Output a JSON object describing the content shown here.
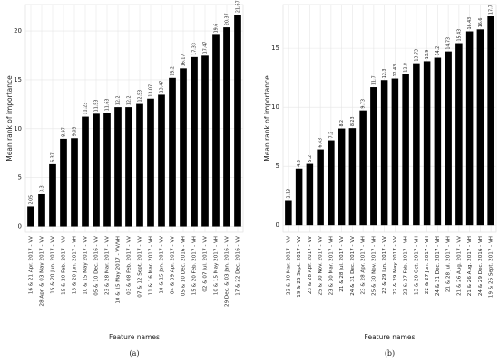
{
  "chart_data": [
    {
      "type": "bar",
      "caption": "(a)",
      "x_label": "Feature names",
      "y_label": "Mean rank of importance",
      "categories": [
        "16 & 21 Apr. 2017 - VV",
        "28 Apr. & 03 May 2017 - VV",
        "15 & 20 Jun. 2017 - VV",
        "15 & 20 Feb. 2017 - VV",
        "15 & 20 Jun. 2017 - VH",
        "10 & 15 May 2017 - VV",
        "05 & 10 Dec. 2016 - VV",
        "23 & 28 Mar. 2017 - VV",
        "10 & 15 May 2017 - VV/VH",
        "03 & 08 Feb. 2017 - VV",
        "07 & 12 Sept. 2017 - VV",
        "11 & 16 Mar. 2017 - VH",
        "10 & 15 Jan. 2017 - VV",
        "04 & 09 Apr. 2017 - VV",
        "05 & 10 Dec. 2016 - VH",
        "15 & 20 Feb. 2017 - VH",
        "02 & 07 Jul. 2017 - VV",
        "10 & 15 May 2017 - VH",
        "29 Dec. & 03 Jan. 2016 - VV",
        "17 & 22 Dec. 2016 - VV"
      ],
      "values": [
        2.05,
        3.3,
        6.37,
        8.97,
        9.03,
        11.23,
        11.53,
        11.63,
        12.2,
        12.2,
        12.53,
        13.07,
        13.47,
        15.2,
        16.17,
        17.33,
        17.47,
        19.6,
        20.37,
        21.67
      ],
      "color": "#000000",
      "ylim": [
        -0.6,
        22.7
      ],
      "yticks": [
        0,
        5,
        10,
        15,
        20
      ],
      "grid": true
    },
    {
      "type": "bar",
      "caption": "(b)",
      "x_label": "Feature names",
      "y_label": "Mean rank of importance",
      "categories": [
        "23 & 30 Mar. 2017 - VV",
        "19 & 26 Sept. 2017 - VV",
        "23 & 28 Apr. 2017 - VV",
        "25 & 30 Nov. 2017 - VV",
        "23 & 30 Mar. 2017 - VH",
        "21 & 28 Jul. 2017 - VV",
        "24 & 31 Dec. 2017 - VV",
        "23 & 28 Apr. 2017 - VH",
        "25 & 30 Nov. 2017 - VH",
        "22 & 29 Jun. 2017 - VV",
        "22 & 29 May 2017 - VV",
        "22 & 27 Feb. 2017 - VH",
        "13 & 20 Oct. 2017 - VH",
        "22 & 27 Jun. 2017 - VH",
        "24 & 31 Dec. 2017 - VH",
        "21 & 28 Jul. 2017 - VH",
        "21 & 26 Aug. 2017 - VV",
        "21 & 26 Aug. 2017 - VH",
        "24 & 29 Dec. 2016 - VH",
        "19 & 26 Sept. 2017 - VH"
      ],
      "values": [
        2.13,
        4.8,
        5.2,
        6.43,
        7.2,
        8.2,
        8.23,
        9.73,
        11.7,
        12.3,
        12.43,
        12.8,
        13.73,
        13.9,
        14.2,
        14.73,
        15.43,
        16.43,
        16.6,
        17.7
      ],
      "color": "#000000",
      "ylim": [
        -0.6,
        18.7
      ],
      "yticks": [
        0,
        5,
        10,
        15
      ],
      "grid": true
    }
  ]
}
